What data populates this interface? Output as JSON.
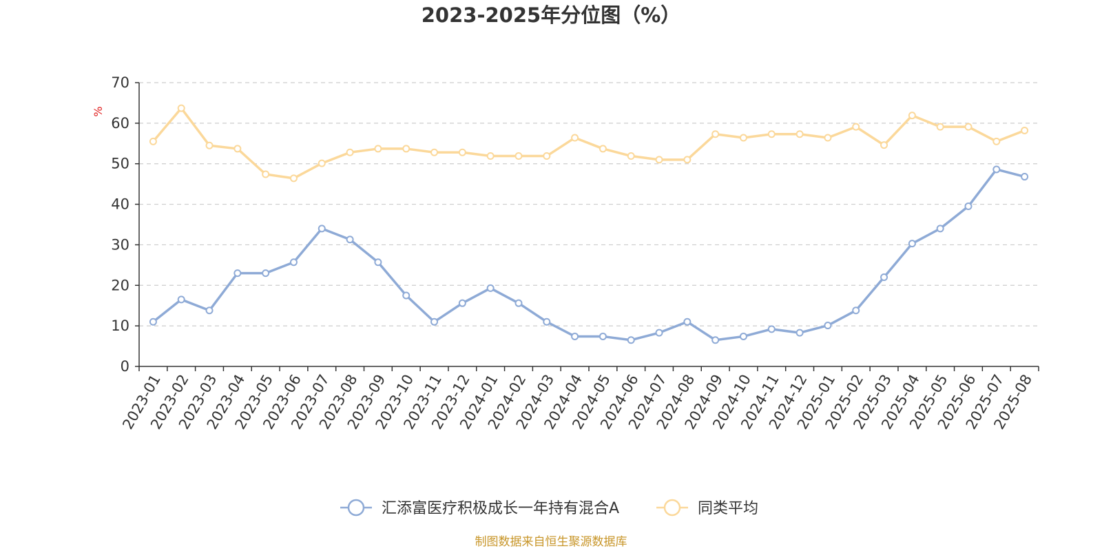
{
  "source_note": "制图数据来自恒生聚源数据库",
  "chart_data": {
    "type": "line",
    "title": "2023-2025年分位图（%）",
    "ylabel": "%",
    "ylim": [
      0,
      70
    ],
    "yticks": [
      0,
      10,
      20,
      30,
      40,
      50,
      60,
      70
    ],
    "grid": true,
    "legend_position": "bottom-center",
    "categories": [
      "2023-01",
      "2023-02",
      "2023-03",
      "2023-04",
      "2023-05",
      "2023-06",
      "2023-07",
      "2023-08",
      "2023-09",
      "2023-10",
      "2023-11",
      "2023-12",
      "2024-01",
      "2024-02",
      "2024-03",
      "2024-04",
      "2024-05",
      "2024-06",
      "2024-07",
      "2024-08",
      "2024-09",
      "2024-10",
      "2024-11",
      "2024-12",
      "2025-01",
      "2025-02",
      "2025-03",
      "2025-04",
      "2025-05",
      "2025-06",
      "2025-07",
      "2025-08"
    ],
    "series": [
      {
        "name": "汇添富医疗积极成长一年持有混合A",
        "color": "#8eaad6",
        "values": [
          11,
          16.5,
          13.8,
          23,
          23,
          25.7,
          34,
          31.3,
          25.7,
          17.5,
          11,
          15.6,
          19.3,
          15.6,
          11,
          7.4,
          7.4,
          6.5,
          8.3,
          11,
          6.5,
          7.4,
          9.2,
          8.3,
          10.1,
          13.8,
          22,
          30.3,
          34,
          39.5,
          48.6,
          46.8
        ]
      },
      {
        "name": "同类平均",
        "color": "#fbd89a",
        "values": [
          55.5,
          63.7,
          54.5,
          53.7,
          47.4,
          46.4,
          50.1,
          52.8,
          53.7,
          53.7,
          52.8,
          52.8,
          51.9,
          51.9,
          51.9,
          56.4,
          53.7,
          51.9,
          51,
          51,
          57.3,
          56.4,
          57.3,
          57.3,
          56.4,
          59.1,
          54.6,
          61.9,
          59.1,
          59.1,
          55.5,
          58.2
        ]
      }
    ]
  }
}
